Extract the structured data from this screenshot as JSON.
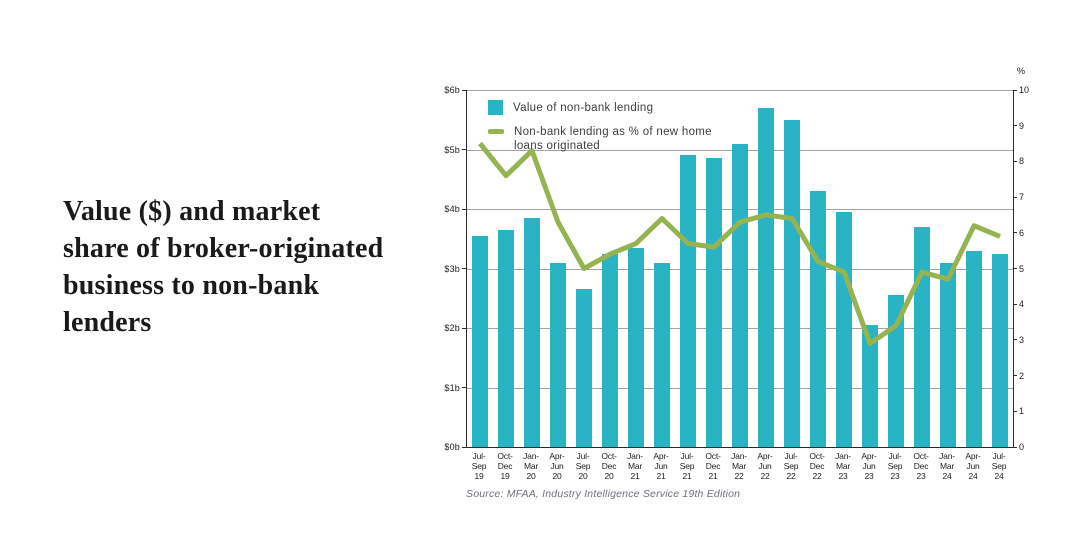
{
  "page_title": "Value ($) and market\nshare of broker-originated\nbusiness to non-bank\nlenders",
  "chart_data": {
    "type": "bar",
    "title": "Value ($) and market share of broker-originated business to non-bank lenders",
    "categories": [
      "Jul-\nSep\n19",
      "Oct-\nDec\n19",
      "Jan-\nMar\n20",
      "Apr-\nJun\n20",
      "Jul-\nSep\n20",
      "Oct-\nDec\n20",
      "Jan-\nMar\n21",
      "Apr-\nJun\n21",
      "Jul-\nSep\n21",
      "Oct-\nDec\n21",
      "Jan-\nMar\n22",
      "Apr-\nJun\n22",
      "Jul-\nSep\n22",
      "Oct-\nDec\n22",
      "Jan-\nMar\n23",
      "Apr-\nJun\n23",
      "Jul-\nSep\n23",
      "Oct-\nDec\n23",
      "Jan-\nMar\n24",
      "Apr-\nJun\n24",
      "Jul-\nSep\n24"
    ],
    "series": [
      {
        "name": "Value of non-bank lending",
        "type": "bar",
        "unit": "$b",
        "color": "#2ab2c5",
        "values": [
          3.55,
          3.65,
          3.85,
          3.1,
          2.65,
          3.25,
          3.35,
          3.1,
          4.9,
          4.85,
          5.1,
          5.7,
          5.5,
          4.3,
          3.95,
          2.05,
          2.55,
          3.7,
          3.1,
          3.3,
          3.25
        ]
      },
      {
        "name": "Non-bank lending as % of new home\nloans originated",
        "type": "line",
        "unit": "%",
        "color": "#95b451",
        "values": [
          8.5,
          7.6,
          8.3,
          6.3,
          5.0,
          5.4,
          5.7,
          6.4,
          5.7,
          5.6,
          6.3,
          6.5,
          6.4,
          5.2,
          4.9,
          2.9,
          3.4,
          4.9,
          4.7,
          6.2,
          5.9
        ]
      }
    ],
    "left_axis": {
      "labels": [
        "$0b",
        "$1b",
        "$2b",
        "$3b",
        "$4b",
        "$5b",
        "$6b"
      ],
      "min": 0,
      "max": 6
    },
    "right_axis": {
      "title": "%",
      "labels": [
        "0",
        "1",
        "2",
        "3",
        "4",
        "5",
        "6",
        "7",
        "8",
        "9",
        "10"
      ],
      "min": 0,
      "max": 10
    },
    "grid": "horizontal",
    "legend_position": "top-left-inside",
    "source": "Source: MFAA, Industry Intelligence Service 19th Edition"
  }
}
